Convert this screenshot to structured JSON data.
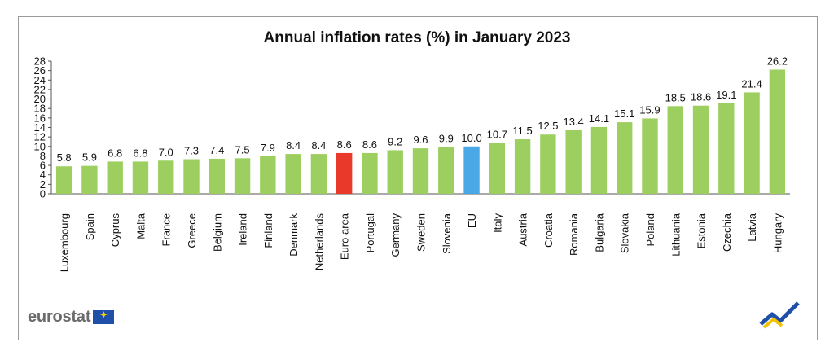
{
  "chart_data": {
    "type": "bar",
    "title": "Annual inflation rates (%) in January 2023",
    "categories": [
      "Luxembourg",
      "Spain",
      "Cyprus",
      "Malta",
      "France",
      "Greece",
      "Belgium",
      "Ireland",
      "Finland",
      "Denmark",
      "Netherlands",
      "Euro area",
      "Portugal",
      "Germany",
      "Sweden",
      "Slovenia",
      "EU",
      "Italy",
      "Austria",
      "Croatia",
      "Romania",
      "Bulgaria",
      "Slovakia",
      "Poland",
      "Lithuania",
      "Estonia",
      "Czechia",
      "Latvia",
      "Hungary"
    ],
    "values": [
      5.8,
      5.9,
      6.8,
      6.8,
      7.0,
      7.3,
      7.4,
      7.5,
      7.9,
      8.4,
      8.4,
      8.6,
      8.6,
      9.2,
      9.6,
      9.9,
      10.0,
      10.7,
      11.5,
      12.5,
      13.4,
      14.1,
      15.1,
      15.9,
      18.5,
      18.6,
      19.1,
      21.4,
      26.2
    ],
    "value_labels": [
      "5.8",
      "5.9",
      "6.8",
      "6.8",
      "7.0",
      "7.3",
      "7.4",
      "7.5",
      "7.9",
      "8.4",
      "8.4",
      "8.6",
      "8.6",
      "9.2",
      "9.6",
      "9.9",
      "10.0",
      "10.7",
      "11.5",
      "12.5",
      "13.4",
      "14.1",
      "15.1",
      "15.9",
      "18.5",
      "18.6",
      "19.1",
      "21.4",
      "26.2"
    ],
    "ylim": [
      0,
      28
    ],
    "yticks": [
      0,
      2,
      4,
      6,
      8,
      10,
      12,
      14,
      16,
      18,
      20,
      22,
      24,
      26,
      28
    ],
    "xlabel": "",
    "ylabel": "",
    "grid": false,
    "legend": "none",
    "colors": {
      "default": "#9ccf5f",
      "Euro area": "#e8392b",
      "EU": "#4aa8e6"
    }
  },
  "branding": {
    "logo_text": "eurostat",
    "flag_icon": "eu-flag-icon",
    "corner_icon": "eurostat-chart-mark-icon"
  }
}
